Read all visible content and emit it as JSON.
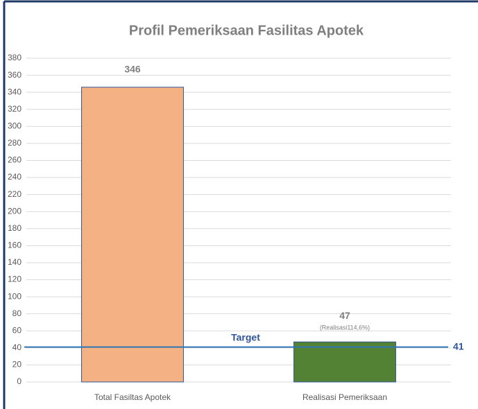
{
  "chart_data": {
    "type": "bar",
    "title": "Profil Pemeriksaan Fasilitas Apotek",
    "categories": [
      "Total Fasiltas Apotek",
      "Realisasi Pemeriksaan"
    ],
    "values": [
      346,
      47
    ],
    "colors": [
      "#f4b183",
      "#548235"
    ],
    "ylim": [
      0,
      380
    ],
    "yticks": [
      0,
      20,
      40,
      60,
      80,
      100,
      120,
      140,
      160,
      180,
      200,
      220,
      240,
      260,
      280,
      300,
      320,
      340,
      360,
      380
    ],
    "grid": true,
    "annotations": [
      {
        "text": "(Realisasi114,6%)"
      }
    ],
    "target": {
      "label": "Target",
      "value": 41,
      "color": "#2e75b6"
    }
  }
}
